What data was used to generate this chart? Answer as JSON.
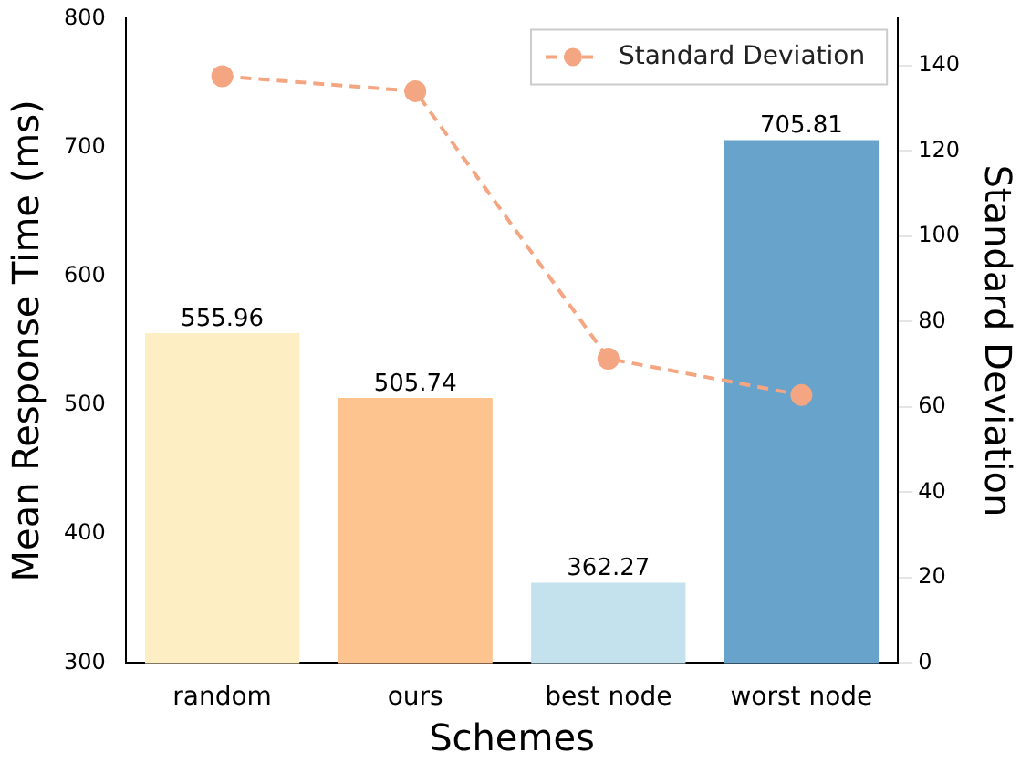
{
  "chart_data": {
    "type": "bar",
    "xlabel": "Schemes",
    "ylabel": "Mean Response Time (ms)",
    "y2label": "Standard Deviation",
    "categories": [
      "random",
      "ours",
      "best node",
      "worst node"
    ],
    "series": [
      {
        "values": [
          555.96,
          505.74,
          362.27,
          705.81
        ],
        "value_labels": [
          "555.96",
          "505.74",
          "362.27",
          "705.81"
        ],
        "colors": [
          "#fdeec3",
          "#fdc48f",
          "#c3e2ee",
          "#68a3cc"
        ]
      },
      {
        "type": "line",
        "name": "Standard Deviation",
        "color": "#f4a582",
        "axis": "y2",
        "values": [
          137.5,
          134,
          71.3,
          62.8
        ],
        "marker": "circle",
        "line_style": "dashed"
      }
    ],
    "ylim": [
      300,
      800
    ],
    "yticks": [
      300,
      400,
      500,
      600,
      700,
      800
    ],
    "y2lim": [
      0,
      151
    ],
    "y2ticks": [
      0,
      20,
      40,
      60,
      80,
      100,
      120,
      140
    ],
    "grid": false,
    "legend": "top right"
  }
}
